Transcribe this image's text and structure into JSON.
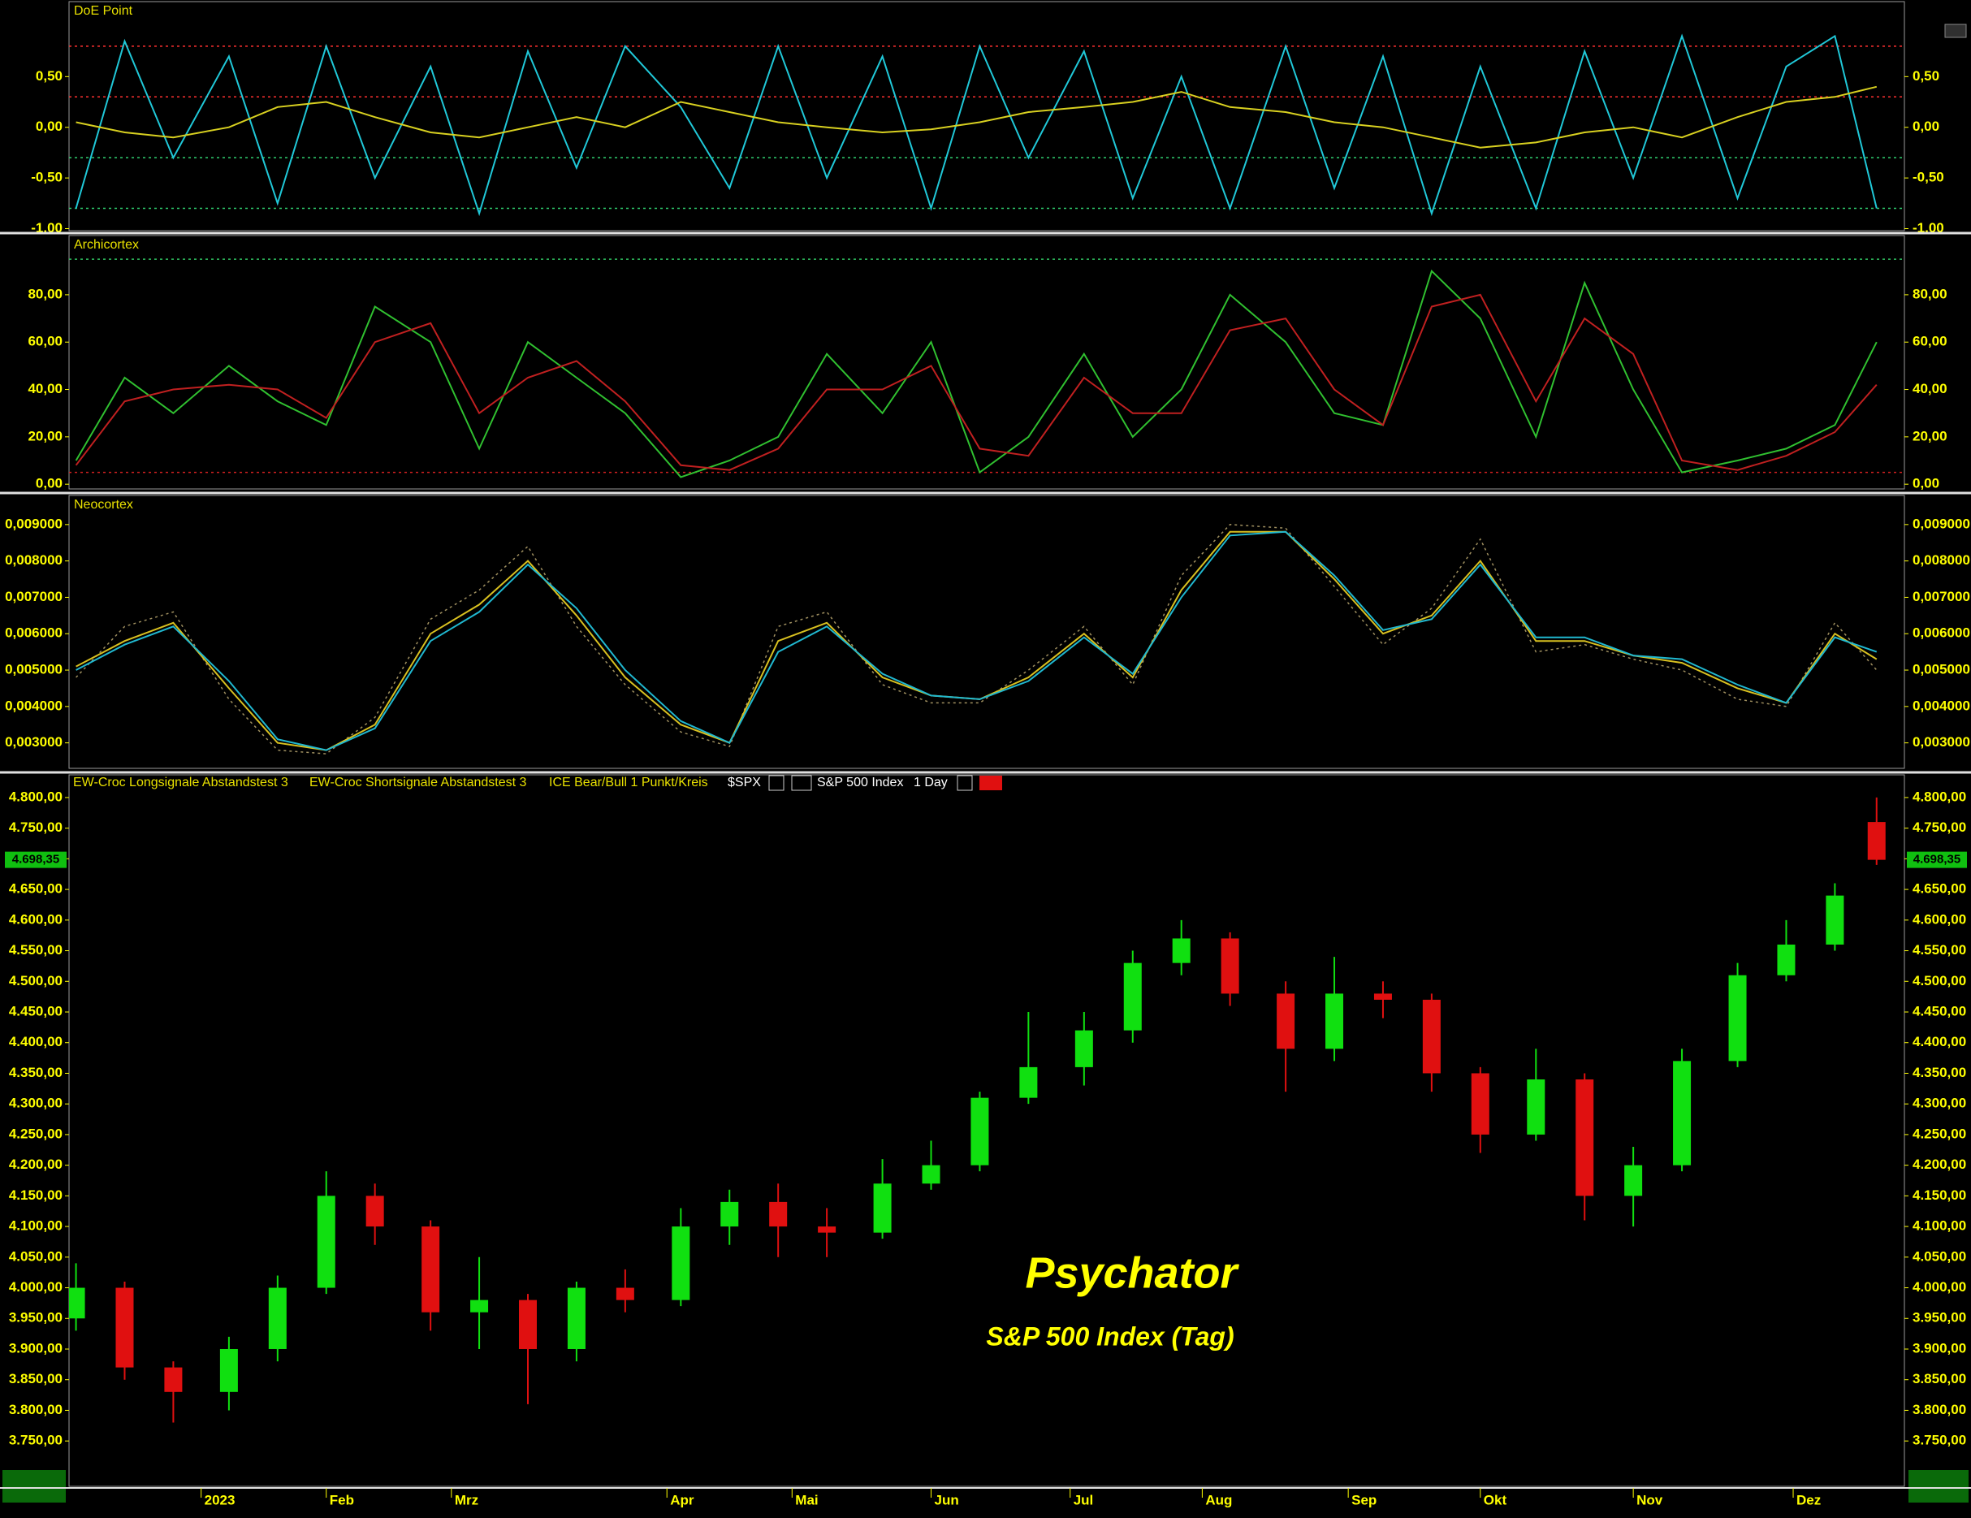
{
  "chart_data": [
    {
      "type": "line",
      "title": "DoE Point",
      "xlim": [
        0,
        264
      ],
      "ylim": [
        -1.02,
        1.24
      ],
      "yticks": [
        {
          "value": -1,
          "label": "-1,00"
        },
        {
          "value": -0.5,
          "label": "-0,50"
        },
        {
          "value": 0,
          "label": "0,00"
        },
        {
          "value": 0.5,
          "label": "0,50"
        }
      ],
      "hlines": [
        {
          "value": 0.8,
          "color": "#ff3030"
        },
        {
          "value": 0.3,
          "color": "#ff3030"
        },
        {
          "value": -0.3,
          "color": "#30d070"
        },
        {
          "value": -0.8,
          "color": "#30d070"
        }
      ],
      "x": [
        1,
        8,
        15,
        23,
        30,
        37,
        44,
        52,
        59,
        66,
        73,
        80,
        88,
        95,
        102,
        109,
        117,
        124,
        131,
        138,
        146,
        153,
        160,
        167,
        175,
        182,
        189,
        196,
        203,
        211,
        218,
        225,
        232,
        240,
        247,
        254,
        260
      ],
      "series": [
        {
          "color": "#20c8d8",
          "values": [
            -0.8,
            0.85,
            -0.3,
            0.7,
            -0.75,
            0.8,
            -0.5,
            0.6,
            -0.85,
            0.75,
            -0.4,
            0.8,
            0.2,
            -0.6,
            0.8,
            -0.5,
            0.7,
            -0.8,
            0.8,
            -0.3,
            0.75,
            -0.7,
            0.5,
            -0.8,
            0.8,
            -0.6,
            0.7,
            -0.85,
            0.6,
            -0.8,
            0.75,
            -0.5,
            0.9,
            -0.7,
            0.6,
            0.9,
            -0.8
          ]
        },
        {
          "color": "#d8d020",
          "values": [
            0.05,
            -0.05,
            -0.1,
            0.0,
            0.2,
            0.25,
            0.1,
            -0.05,
            -0.1,
            0.0,
            0.1,
            0.0,
            0.25,
            0.15,
            0.05,
            0.0,
            -0.05,
            -0.02,
            0.05,
            0.15,
            0.2,
            0.25,
            0.35,
            0.2,
            0.15,
            0.05,
            0.0,
            -0.1,
            -0.2,
            -0.15,
            -0.05,
            0.0,
            -0.1,
            0.1,
            0.25,
            0.3,
            0.4
          ]
        }
      ]
    },
    {
      "type": "line",
      "title": "Archicortex",
      "xlim": [
        0,
        264
      ],
      "ylim": [
        -2,
        105
      ],
      "yticks": [
        {
          "value": 0,
          "label": "0,00"
        },
        {
          "value": 20,
          "label": "20,00"
        },
        {
          "value": 40,
          "label": "40,00"
        },
        {
          "value": 60,
          "label": "60,00"
        },
        {
          "value": 80,
          "label": "80,00"
        }
      ],
      "hlines": [
        {
          "value": 95,
          "color": "#30c060"
        },
        {
          "value": 5,
          "color": "#d02020"
        }
      ],
      "x": [
        1,
        8,
        15,
        23,
        30,
        37,
        44,
        52,
        59,
        66,
        73,
        80,
        88,
        95,
        102,
        109,
        117,
        124,
        131,
        138,
        146,
        153,
        160,
        167,
        175,
        182,
        189,
        196,
        203,
        211,
        218,
        225,
        232,
        240,
        247,
        254,
        260
      ],
      "series": [
        {
          "color": "#30c030",
          "values": [
            10,
            45,
            30,
            50,
            35,
            25,
            75,
            60,
            15,
            60,
            45,
            30,
            3,
            10,
            20,
            55,
            30,
            60,
            5,
            20,
            55,
            20,
            40,
            80,
            60,
            30,
            25,
            90,
            70,
            20,
            85,
            40,
            5,
            10,
            15,
            25,
            60
          ]
        },
        {
          "color": "#c02020",
          "values": [
            8,
            35,
            40,
            42,
            40,
            28,
            60,
            68,
            30,
            45,
            52,
            35,
            8,
            6,
            15,
            40,
            40,
            50,
            15,
            12,
            45,
            30,
            30,
            65,
            70,
            40,
            25,
            75,
            80,
            35,
            70,
            55,
            10,
            6,
            12,
            22,
            42
          ]
        }
      ]
    },
    {
      "type": "line",
      "title": "Neocortex",
      "xlim": [
        0,
        264
      ],
      "ylim": [
        0.0023,
        0.0098
      ],
      "yticks": [
        {
          "value": 0.003,
          "label": "0,003000"
        },
        {
          "value": 0.004,
          "label": "0,004000"
        },
        {
          "value": 0.005,
          "label": "0,005000"
        },
        {
          "value": 0.006,
          "label": "0,006000"
        },
        {
          "value": 0.007,
          "label": "0,007000"
        },
        {
          "value": 0.008,
          "label": "0,008000"
        },
        {
          "value": 0.009,
          "label": "0,009000"
        }
      ],
      "hlines": [],
      "x": [
        1,
        8,
        15,
        23,
        30,
        37,
        44,
        52,
        59,
        66,
        73,
        80,
        88,
        95,
        102,
        109,
        117,
        124,
        131,
        138,
        146,
        153,
        160,
        167,
        175,
        182,
        189,
        196,
        203,
        211,
        218,
        225,
        232,
        240,
        247,
        254,
        260
      ],
      "series": [
        {
          "color": "#a09060",
          "dash": true,
          "values": [
            0.0048,
            0.0062,
            0.0066,
            0.0042,
            0.0028,
            0.0027,
            0.0037,
            0.0064,
            0.0072,
            0.0084,
            0.0062,
            0.0046,
            0.0033,
            0.0029,
            0.0062,
            0.0066,
            0.0046,
            0.0041,
            0.0041,
            0.005,
            0.0062,
            0.0046,
            0.0076,
            0.009,
            0.0089,
            0.0073,
            0.0057,
            0.0067,
            0.0086,
            0.0055,
            0.0057,
            0.0053,
            0.005,
            0.0042,
            0.004,
            0.0063,
            0.005
          ]
        },
        {
          "color": "#d8c020",
          "values": [
            0.0051,
            0.0058,
            0.0063,
            0.0045,
            0.003,
            0.0028,
            0.0035,
            0.006,
            0.0068,
            0.008,
            0.0065,
            0.0048,
            0.0035,
            0.003,
            0.0058,
            0.0063,
            0.0048,
            0.0043,
            0.0042,
            0.0048,
            0.006,
            0.0048,
            0.0072,
            0.0088,
            0.0088,
            0.0075,
            0.006,
            0.0065,
            0.008,
            0.0058,
            0.0058,
            0.0054,
            0.0052,
            0.0045,
            0.0041,
            0.006,
            0.0053
          ]
        },
        {
          "color": "#20b8d0",
          "values": [
            0.005,
            0.0057,
            0.0062,
            0.0047,
            0.0031,
            0.0028,
            0.0034,
            0.0058,
            0.0066,
            0.0079,
            0.0067,
            0.005,
            0.0036,
            0.003,
            0.0055,
            0.0062,
            0.0049,
            0.0043,
            0.0042,
            0.0047,
            0.0059,
            0.0049,
            0.007,
            0.0087,
            0.0088,
            0.0076,
            0.0061,
            0.0064,
            0.0079,
            0.0059,
            0.0059,
            0.0054,
            0.0053,
            0.0046,
            0.0041,
            0.0059,
            0.0055
          ]
        }
      ]
    },
    {
      "type": "candlestick",
      "xlim": [
        0,
        264
      ],
      "ylim": [
        3676,
        4837
      ],
      "header_labels": [
        "EW-Croc Longsignale Abstandstest 3",
        "EW-Croc Shortsignale Abstandstest 3",
        "ICE Bear/Bull 1 Punkt/Kreis"
      ],
      "symbol": "$SPX",
      "instrument": "S&P 500 Index",
      "interval": "1 Day",
      "annotations": [
        "Psychator",
        "S&P 500 Index (Tag)"
      ],
      "up_color": "#10e010",
      "down_color": "#e01010",
      "yticks": [
        {
          "value": 3750,
          "label": "3.750,00"
        },
        {
          "value": 3800,
          "label": "3.800,00"
        },
        {
          "value": 3850,
          "label": "3.850,00"
        },
        {
          "value": 3900,
          "label": "3.900,00"
        },
        {
          "value": 3950,
          "label": "3.950,00"
        },
        {
          "value": 4000,
          "label": "4.000,00"
        },
        {
          "value": 4050,
          "label": "4.050,00"
        },
        {
          "value": 4100,
          "label": "4.100,00"
        },
        {
          "value": 4150,
          "label": "4.150,00"
        },
        {
          "value": 4200,
          "label": "4.200,00"
        },
        {
          "value": 4250,
          "label": "4.250,00"
        },
        {
          "value": 4300,
          "label": "4.300,00"
        },
        {
          "value": 4350,
          "label": "4.350,00"
        },
        {
          "value": 4400,
          "label": "4.400,00"
        },
        {
          "value": 4450,
          "label": "4.450,00"
        },
        {
          "value": 4500,
          "label": "4.500,00"
        },
        {
          "value": 4550,
          "label": "4.550,00"
        },
        {
          "value": 4600,
          "label": "4.600,00"
        },
        {
          "value": 4650,
          "label": "4.650,00"
        },
        {
          "value": 4700,
          "label": "4.700,00"
        },
        {
          "value": 4750,
          "label": "4.750,00"
        },
        {
          "value": 4800,
          "label": "4.800,00"
        }
      ],
      "xticks": [
        {
          "value": 19,
          "label": "2023"
        },
        {
          "value": 37,
          "label": "Feb"
        },
        {
          "value": 55,
          "label": "Mrz"
        },
        {
          "value": 86,
          "label": "Apr"
        },
        {
          "value": 104,
          "label": "Mai"
        },
        {
          "value": 124,
          "label": "Jun"
        },
        {
          "value": 144,
          "label": "Jul"
        },
        {
          "value": 163,
          "label": "Aug"
        },
        {
          "value": 184,
          "label": "Sep"
        },
        {
          "value": 203,
          "label": "Okt"
        },
        {
          "value": 225,
          "label": "Nov"
        },
        {
          "value": 248,
          "label": "Dez"
        }
      ],
      "last_price": {
        "value": 4698.35,
        "label": "4.698,35"
      },
      "x": [
        1,
        8,
        15,
        23,
        30,
        37,
        44,
        52,
        59,
        66,
        73,
        80,
        88,
        95,
        102,
        109,
        117,
        124,
        131,
        138,
        146,
        153,
        160,
        167,
        175,
        182,
        189,
        196,
        203,
        211,
        218,
        225,
        232,
        240,
        247,
        254,
        260
      ],
      "open": [
        3950,
        4000,
        3870,
        3830,
        3900,
        4000,
        4150,
        4100,
        3960,
        3980,
        3900,
        4000,
        3980,
        4100,
        4140,
        4100,
        4090,
        4170,
        4200,
        4310,
        4360,
        4420,
        4530,
        4570,
        4480,
        4390,
        4480,
        4470,
        4350,
        4250,
        4340,
        4150,
        4200,
        4370,
        4510,
        4560,
        4760
      ],
      "high": [
        4040,
        4010,
        3880,
        3920,
        4020,
        4190,
        4170,
        4110,
        4050,
        3990,
        4010,
        4030,
        4130,
        4160,
        4170,
        4130,
        4210,
        4240,
        4320,
        4450,
        4450,
        4550,
        4600,
        4580,
        4500,
        4540,
        4500,
        4480,
        4360,
        4390,
        4350,
        4230,
        4390,
        4530,
        4600,
        4660,
        4800
      ],
      "low": [
        3930,
        3850,
        3780,
        3800,
        3880,
        3990,
        4070,
        3930,
        3900,
        3810,
        3880,
        3960,
        3970,
        4070,
        4050,
        4050,
        4080,
        4160,
        4190,
        4300,
        4330,
        4400,
        4510,
        4460,
        4320,
        4370,
        4440,
        4320,
        4220,
        4240,
        4110,
        4100,
        4190,
        4360,
        4500,
        4550,
        4690
      ],
      "close": [
        4000,
        3870,
        3830,
        3900,
        4000,
        4150,
        4100,
        3960,
        3980,
        3900,
        4000,
        3980,
        4100,
        4140,
        4100,
        4090,
        4170,
        4200,
        4310,
        4360,
        4420,
        4530,
        4570,
        4480,
        4390,
        4480,
        4470,
        4350,
        4250,
        4340,
        4150,
        4200,
        4370,
        4510,
        4560,
        4640,
        4698.35
      ]
    }
  ]
}
